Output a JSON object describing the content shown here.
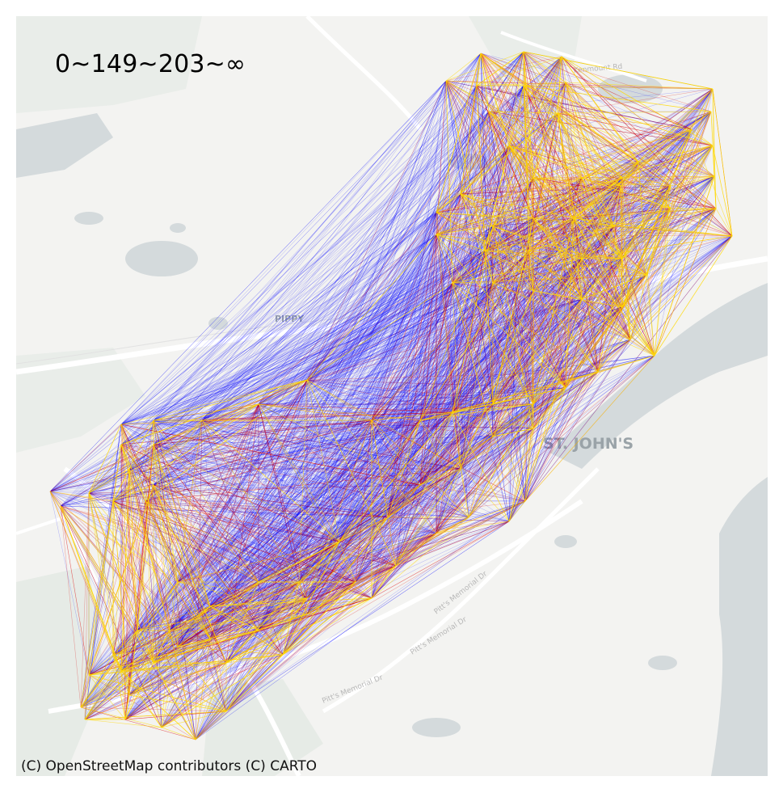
{
  "legend": {
    "title": "0~149~203~∞"
  },
  "attribution": "(C) OpenStreetMap contributors (C) CARTO",
  "basemap_labels": {
    "city": "ST. JOHN'S",
    "area": "PIPPY",
    "roads": [
      "Pitt's Memorial Dr",
      "Pitt's Memorial Dr",
      "Pitt's Memorial Dr",
      "Kenmount Rd"
    ]
  },
  "colors": {
    "background": "#f3f3f1",
    "water": "#d4dadc",
    "green": "#e8ece8",
    "road": "#ffffff",
    "edge_class_low": "#0000ff",
    "edge_class_mid": "#dd0000",
    "edge_class_high": "#ffd800"
  },
  "edge_classes": [
    "0~149",
    "149~203",
    "203~∞"
  ]
}
